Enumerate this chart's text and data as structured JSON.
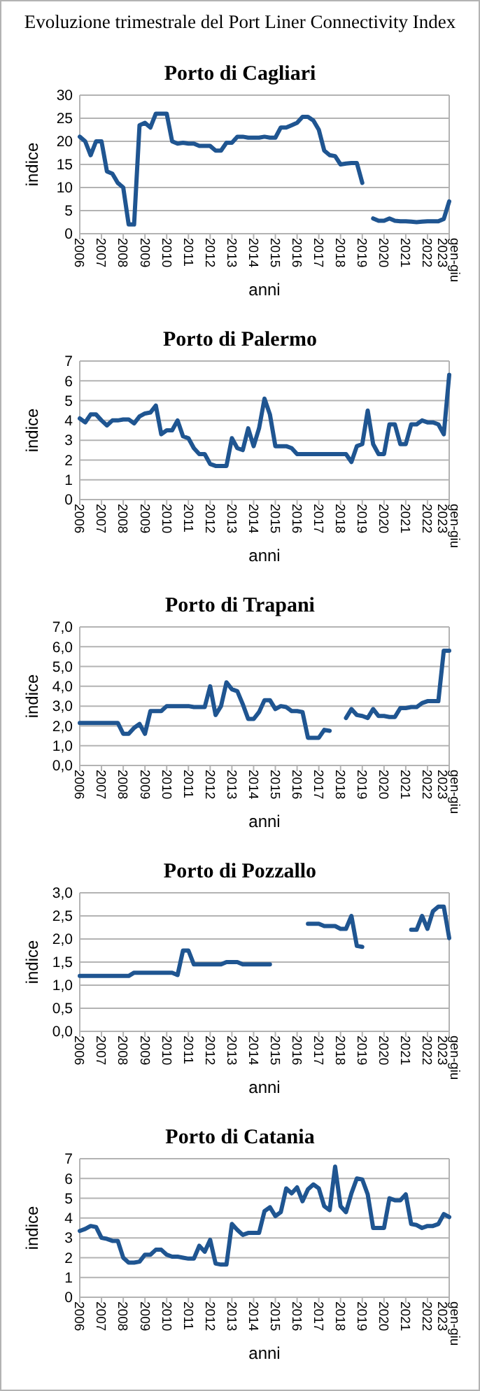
{
  "chart_data": [
    {
      "type": "line",
      "title": "Evoluzione trimestrale del Port Liner Connectivity Index",
      "subtitle": "Porto di Cagliari",
      "xlabel": "anni",
      "ylabel": "indice",
      "grid": "y",
      "marker": "none",
      "line_style": "solid",
      "categories": [
        "2006",
        null,
        null,
        null,
        "2007",
        null,
        null,
        null,
        "2008",
        null,
        null,
        null,
        "2009",
        null,
        null,
        null,
        "2010",
        null,
        null,
        null,
        "2011",
        null,
        null,
        null,
        "2012",
        null,
        null,
        null,
        "2013",
        null,
        null,
        null,
        "2014",
        null,
        null,
        null,
        "2015",
        null,
        null,
        null,
        "2016",
        null,
        null,
        null,
        "2017",
        null,
        null,
        null,
        "2018",
        null,
        null,
        null,
        "2019",
        null,
        null,
        null,
        "2020",
        null,
        null,
        null,
        "2021",
        null,
        null,
        null,
        "2022",
        null,
        null,
        null,
        "gen-giu 2023"
      ],
      "ylim": [
        0,
        30
      ],
      "yticks": [
        0,
        5,
        10,
        15,
        20,
        25,
        30
      ],
      "series": [
        {
          "color": "#1f5591",
          "values": [
            21,
            20,
            17,
            20,
            20,
            13.5,
            13,
            11,
            10,
            2,
            2,
            23.5,
            24,
            23,
            26,
            26,
            26,
            20,
            19.5,
            19.7,
            19.5,
            19.5,
            19,
            19,
            19,
            18,
            18,
            19.7,
            19.7,
            21,
            21,
            20.8,
            20.8,
            20.8,
            21,
            20.8,
            20.8,
            23,
            23,
            23.5,
            24,
            25.3,
            25.3,
            24.5,
            22.5,
            18,
            17,
            16.8,
            15,
            15.2,
            15.3,
            15.3,
            11,
            null,
            3.3,
            2.8,
            2.8,
            3.3,
            2.8,
            2.7,
            2.7,
            2.6,
            2.5,
            2.6,
            2.7,
            2.7,
            2.7,
            3.2,
            7
          ]
        }
      ]
    },
    {
      "type": "line",
      "subtitle": "Porto di Palermo",
      "xlabel": "anni",
      "ylabel": "indice",
      "grid": "y",
      "marker": "none",
      "line_style": "solid",
      "categories": [
        "2006",
        null,
        null,
        null,
        "2007",
        null,
        null,
        null,
        "2008",
        null,
        null,
        null,
        "2009",
        null,
        null,
        null,
        "2010",
        null,
        null,
        null,
        "2011",
        null,
        null,
        null,
        "2012",
        null,
        null,
        null,
        "2013",
        null,
        null,
        null,
        "2014",
        null,
        null,
        null,
        "2015",
        null,
        null,
        null,
        "2016",
        null,
        null,
        null,
        "2017",
        null,
        null,
        null,
        "2018",
        null,
        null,
        null,
        "2019",
        null,
        null,
        null,
        "2020",
        null,
        null,
        null,
        "2021",
        null,
        null,
        null,
        "2022",
        null,
        null,
        null,
        "gen-giu 2023"
      ],
      "ylim": [
        0,
        7
      ],
      "yticks": [
        0,
        1,
        2,
        3,
        4,
        5,
        6,
        7
      ],
      "series": [
        {
          "color": "#1f5591",
          "values": [
            4.1,
            3.9,
            4.3,
            4.3,
            4.0,
            3.75,
            4.0,
            4.0,
            4.05,
            4.05,
            3.85,
            4.2,
            4.35,
            4.4,
            4.75,
            3.3,
            3.5,
            3.5,
            4.0,
            3.2,
            3.1,
            2.6,
            2.3,
            2.3,
            1.8,
            1.7,
            1.7,
            1.7,
            3.1,
            2.6,
            2.5,
            3.6,
            2.7,
            3.6,
            5.1,
            4.3,
            2.7,
            2.7,
            2.7,
            2.6,
            2.3,
            2.3,
            2.3,
            2.3,
            2.3,
            2.3,
            2.3,
            2.3,
            2.3,
            2.3,
            1.9,
            2.7,
            2.8,
            4.5,
            2.8,
            2.3,
            2.3,
            3.8,
            3.8,
            2.8,
            2.8,
            3.8,
            3.8,
            4.0,
            3.9,
            3.9,
            3.8,
            3.3,
            6.3
          ]
        }
      ]
    },
    {
      "type": "line",
      "subtitle": "Porto di Trapani",
      "xlabel": "anni",
      "ylabel": "indice",
      "grid": "y",
      "marker": "none",
      "line_style": "solid",
      "categories": [
        "2006",
        null,
        null,
        null,
        "2007",
        null,
        null,
        null,
        "2008",
        null,
        null,
        null,
        "2009",
        null,
        null,
        null,
        "2010",
        null,
        null,
        null,
        "2011",
        null,
        null,
        null,
        "2012",
        null,
        null,
        null,
        "2013",
        null,
        null,
        null,
        "2014",
        null,
        null,
        null,
        "2015",
        null,
        null,
        null,
        "2016",
        null,
        null,
        null,
        "2017",
        null,
        null,
        null,
        "2018",
        null,
        null,
        null,
        "2019",
        null,
        null,
        null,
        "2020",
        null,
        null,
        null,
        "2021",
        null,
        null,
        null,
        "2022",
        null,
        null,
        null,
        "gen-giu 2023"
      ],
      "ylim": [
        0,
        7
      ],
      "yticks": [
        {
          "value": 0,
          "label": "0,0"
        },
        {
          "value": 1,
          "label": "1,0"
        },
        {
          "value": 2,
          "label": "2,0"
        },
        {
          "value": 3,
          "label": "3,0"
        },
        {
          "value": 4,
          "label": "4,0"
        },
        {
          "value": 5,
          "label": "5,0"
        },
        {
          "value": 6,
          "label": "6,0"
        },
        {
          "value": 7,
          "label": "7,0"
        }
      ],
      "series": [
        {
          "color": "#1f5591",
          "values": [
            2.15,
            2.15,
            2.15,
            2.15,
            2.15,
            2.15,
            2.15,
            2.15,
            1.6,
            1.6,
            1.9,
            2.1,
            1.6,
            2.75,
            2.75,
            2.75,
            3.0,
            3.0,
            3.0,
            3.0,
            3.0,
            2.95,
            2.95,
            2.95,
            4.0,
            2.55,
            3.0,
            4.2,
            3.85,
            3.75,
            3.1,
            2.35,
            2.35,
            2.7,
            3.3,
            3.3,
            2.85,
            3.0,
            2.95,
            2.75,
            2.75,
            2.7,
            1.4,
            1.4,
            1.4,
            1.8,
            1.75,
            null,
            null,
            2.4,
            2.85,
            2.55,
            2.5,
            2.4,
            2.85,
            2.5,
            2.5,
            2.45,
            2.45,
            2.9,
            2.9,
            2.95,
            2.95,
            3.15,
            3.25,
            3.25,
            3.25,
            5.8,
            5.8
          ]
        }
      ]
    },
    {
      "type": "line",
      "subtitle": "Porto di Pozzallo",
      "xlabel": "anni",
      "ylabel": "indice",
      "grid": "y",
      "marker": "none",
      "line_style": "solid",
      "categories": [
        "2006",
        null,
        null,
        null,
        "2007",
        null,
        null,
        null,
        "2008",
        null,
        null,
        null,
        "2009",
        null,
        null,
        null,
        "2010",
        null,
        null,
        null,
        "2011",
        null,
        null,
        null,
        "2012",
        null,
        null,
        null,
        "2013",
        null,
        null,
        null,
        "2014",
        null,
        null,
        null,
        "2015",
        null,
        null,
        null,
        "2016",
        null,
        null,
        null,
        "2017",
        null,
        null,
        null,
        "2018",
        null,
        null,
        null,
        "2019",
        null,
        null,
        null,
        "2020",
        null,
        null,
        null,
        "2021",
        null,
        null,
        null,
        "2022",
        null,
        null,
        null,
        "gen-giu 2023"
      ],
      "ylim": [
        0,
        3
      ],
      "yticks": [
        {
          "value": 0,
          "label": "0,0"
        },
        {
          "value": 0.5,
          "label": "0,5"
        },
        {
          "value": 1,
          "label": "1,0"
        },
        {
          "value": 1.5,
          "label": "1,5"
        },
        {
          "value": 2,
          "label": "2,0"
        },
        {
          "value": 2.5,
          "label": "2,5"
        },
        {
          "value": 3,
          "label": "3,0"
        }
      ],
      "series": [
        {
          "color": "#1f5591",
          "values": [
            1.2,
            1.2,
            1.2,
            1.2,
            1.2,
            1.2,
            1.2,
            1.2,
            1.2,
            1.2,
            1.27,
            1.27,
            1.27,
            1.27,
            1.27,
            1.27,
            1.27,
            1.27,
            1.22,
            1.75,
            1.75,
            1.45,
            1.45,
            1.45,
            1.45,
            1.45,
            1.45,
            1.5,
            1.5,
            1.5,
            1.45,
            1.45,
            1.45,
            1.45,
            1.45,
            1.45,
            null,
            null,
            null,
            null,
            null,
            null,
            2.33,
            2.33,
            2.33,
            2.28,
            2.28,
            2.28,
            2.22,
            2.22,
            2.5,
            1.85,
            1.83,
            null,
            null,
            null,
            null,
            null,
            null,
            null,
            null,
            2.2,
            2.2,
            2.5,
            2.22,
            2.6,
            2.7,
            2.7,
            2.02
          ]
        }
      ]
    },
    {
      "type": "line",
      "subtitle": "Porto di Catania",
      "xlabel": "anni",
      "ylabel": "indice",
      "grid": "y",
      "marker": "none",
      "line_style": "solid",
      "categories": [
        "2006",
        null,
        null,
        null,
        "2007",
        null,
        null,
        null,
        "2008",
        null,
        null,
        null,
        "2009",
        null,
        null,
        null,
        "2010",
        null,
        null,
        null,
        "2011",
        null,
        null,
        null,
        "2012",
        null,
        null,
        null,
        "2013",
        null,
        null,
        null,
        "2014",
        null,
        null,
        null,
        "2015",
        null,
        null,
        null,
        "2016",
        null,
        null,
        null,
        "2017",
        null,
        null,
        null,
        "2018",
        null,
        null,
        null,
        "2019",
        null,
        null,
        null,
        "2020",
        null,
        null,
        null,
        "2021",
        null,
        null,
        null,
        "2022",
        null,
        null,
        null,
        "gen-giu 2023"
      ],
      "ylim": [
        0,
        7
      ],
      "yticks": [
        0,
        1,
        2,
        3,
        4,
        5,
        6,
        7
      ],
      "series": [
        {
          "color": "#1f5591",
          "values": [
            3.35,
            3.45,
            3.6,
            3.55,
            3.0,
            2.95,
            2.85,
            2.85,
            2.0,
            1.75,
            1.75,
            1.8,
            2.15,
            2.15,
            2.4,
            2.4,
            2.15,
            2.05,
            2.05,
            2.0,
            1.95,
            1.95,
            2.6,
            2.3,
            2.9,
            1.7,
            1.65,
            1.65,
            3.7,
            3.4,
            3.15,
            3.25,
            3.25,
            3.25,
            4.35,
            4.55,
            4.1,
            4.3,
            5.5,
            5.25,
            5.55,
            4.85,
            5.45,
            5.7,
            5.5,
            4.6,
            4.4,
            6.6,
            4.6,
            4.3,
            5.25,
            6.0,
            5.95,
            5.2,
            3.5,
            3.5,
            3.5,
            5.0,
            4.9,
            4.9,
            5.2,
            3.7,
            3.65,
            3.5,
            3.6,
            3.6,
            3.7,
            4.2,
            4.05
          ]
        }
      ]
    }
  ]
}
